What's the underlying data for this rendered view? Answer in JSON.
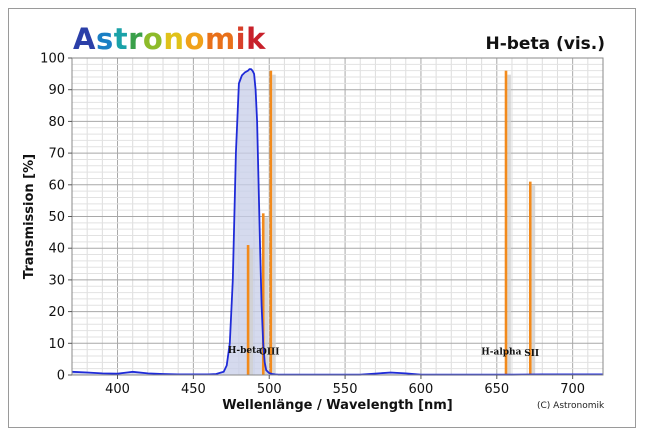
{
  "logo": {
    "letters": [
      "A",
      "s",
      "t",
      "r",
      "o",
      "n",
      "o",
      "m",
      "i",
      "k"
    ],
    "colors": [
      "#2b3fa8",
      "#1a7fc4",
      "#1aa2a8",
      "#3aa04a",
      "#8dbb2a",
      "#e0c21a",
      "#f0a11a",
      "#e8701a",
      "#d8402a",
      "#c8202a"
    ]
  },
  "chart_data": {
    "type": "line",
    "title": "H-beta (vis.)",
    "xlabel": "Wellenlänge / Wavelength [nm]",
    "ylabel": "Transmission [%]",
    "xlim": [
      370,
      720
    ],
    "ylim": [
      0,
      100
    ],
    "xticks": [
      400,
      450,
      500,
      550,
      600,
      650,
      700
    ],
    "yticks": [
      0,
      10,
      20,
      30,
      40,
      50,
      60,
      70,
      80,
      90,
      100
    ],
    "grid": true,
    "colors": {
      "filter": "#1f2bd8",
      "filter_fill": "#c7cde8",
      "lines": "#f28a1c",
      "line_shadow": "#cfcfcf"
    },
    "series": [
      {
        "x": [
          370,
          380,
          390,
          400,
          410,
          420,
          430,
          440,
          450,
          460,
          465,
          470,
          472,
          474,
          476,
          478,
          480,
          482,
          484,
          486,
          487,
          488,
          489,
          490,
          491,
          492,
          493,
          494,
          495,
          496,
          497,
          498,
          500,
          502,
          504,
          506,
          510,
          520,
          540,
          560,
          580,
          590,
          600,
          620,
          640,
          660,
          680,
          700,
          720
        ],
        "y": [
          1,
          0.8,
          0.5,
          0.4,
          1.0,
          0.5,
          0.3,
          0.2,
          0.2,
          0.2,
          0.3,
          1,
          3,
          10,
          30,
          70,
          92,
          94.5,
          95.5,
          96,
          96.5,
          96.5,
          96,
          95,
          90,
          80,
          60,
          40,
          22,
          10,
          4,
          1.5,
          0.6,
          0.3,
          0.2,
          0.1,
          0.1,
          0.1,
          0.1,
          0.1,
          0.8,
          0.5,
          0.1,
          0.1,
          0.1,
          0.1,
          0.2,
          0.2,
          0.2
        ]
      }
    ],
    "emission_lines": [
      {
        "x": 486,
        "y": 41
      },
      {
        "x": 496,
        "y": 51
      },
      {
        "x": 501,
        "y": 96
      },
      {
        "x": 656,
        "y": 96
      },
      {
        "x": 672,
        "y": 61
      }
    ],
    "annotations": [
      {
        "text": "H-beta",
        "x": 484,
        "y": 7
      },
      {
        "text": "OIII",
        "x": 500,
        "y": 6.5
      },
      {
        "text": "H-alpha",
        "x": 653,
        "y": 6.5
      },
      {
        "text": "SII",
        "x": 673,
        "y": 6
      }
    ],
    "copyright": "(C) Astronomik"
  }
}
